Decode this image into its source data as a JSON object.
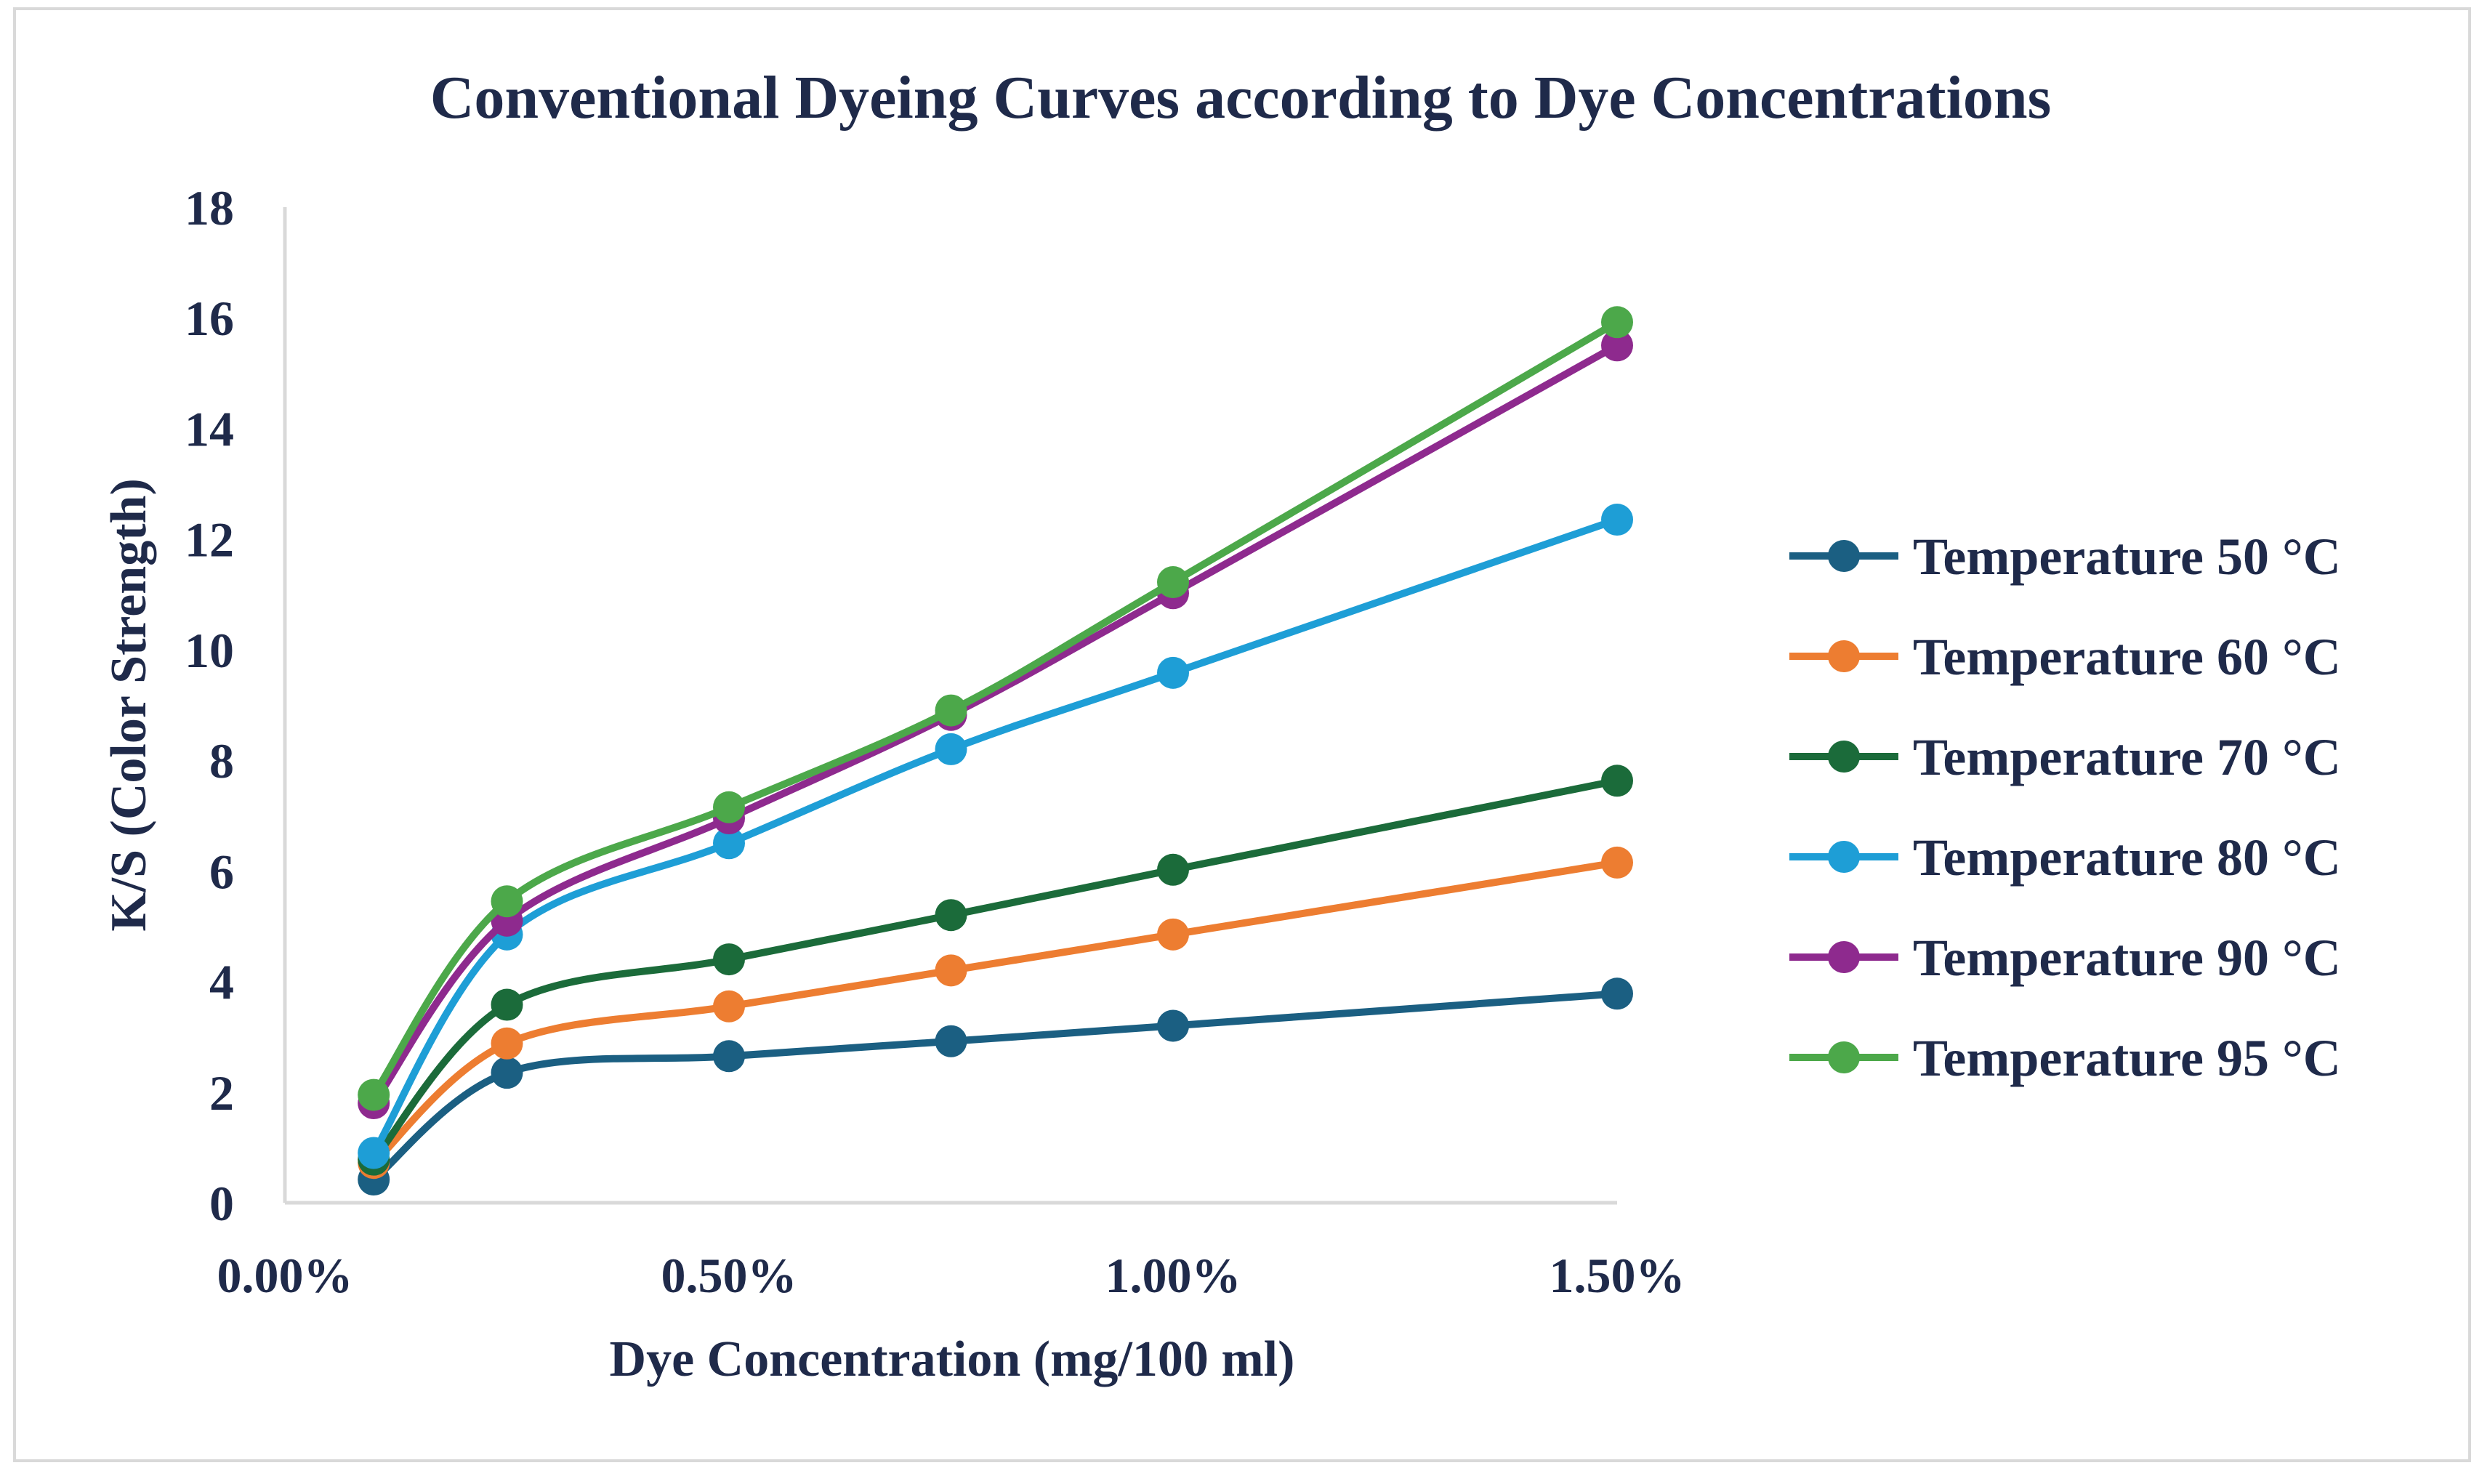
{
  "chart_data": {
    "type": "line",
    "title": "Conventional Dyeing Curves according to Dye Concentrations",
    "xlabel": "Dye Concentration (mg/100 ml)",
    "ylabel": "K/S  (Color Strength)",
    "xlim": [
      0,
      1.5
    ],
    "ylim": [
      0,
      18
    ],
    "x_ticks": [
      0,
      0.5,
      1.0,
      1.5
    ],
    "x_tick_labels": [
      "0.00%",
      "0.50%",
      "1.00%",
      "1.50%"
    ],
    "y_ticks": [
      0,
      2,
      4,
      6,
      8,
      10,
      12,
      14,
      16,
      18
    ],
    "y_tick_labels": [
      "0",
      "2",
      "4",
      "6",
      "8",
      "10",
      "12",
      "14",
      "16",
      "18"
    ],
    "x": [
      0.1,
      0.25,
      0.5,
      0.75,
      1.0,
      1.5
    ],
    "grid": false,
    "legend_position": "right",
    "smooth": true,
    "series": [
      {
        "name": "Temperature 50 °C",
        "color": "#1b5f82",
        "values": [
          0.42,
          2.35,
          2.65,
          2.92,
          3.2,
          3.78
        ]
      },
      {
        "name": "Temperature 60 °C",
        "color": "#ed7d31",
        "values": [
          0.72,
          2.88,
          3.55,
          4.2,
          4.85,
          6.15
        ]
      },
      {
        "name": "Temperature 70 °C",
        "color": "#1b6b3a",
        "values": [
          0.78,
          3.58,
          4.4,
          5.2,
          6.02,
          7.63
        ]
      },
      {
        "name": "Temperature 80 °C",
        "color": "#1e9ed6",
        "values": [
          0.9,
          4.85,
          6.5,
          8.2,
          9.58,
          12.35
        ]
      },
      {
        "name": "Temperature 90 °C",
        "color": "#8e2a8e",
        "values": [
          1.8,
          5.1,
          6.95,
          8.82,
          11.02,
          15.5
        ]
      },
      {
        "name": "Temperature 95 °C",
        "color": "#4ca84a",
        "values": [
          1.95,
          5.45,
          7.15,
          8.9,
          11.22,
          15.92
        ]
      }
    ]
  }
}
